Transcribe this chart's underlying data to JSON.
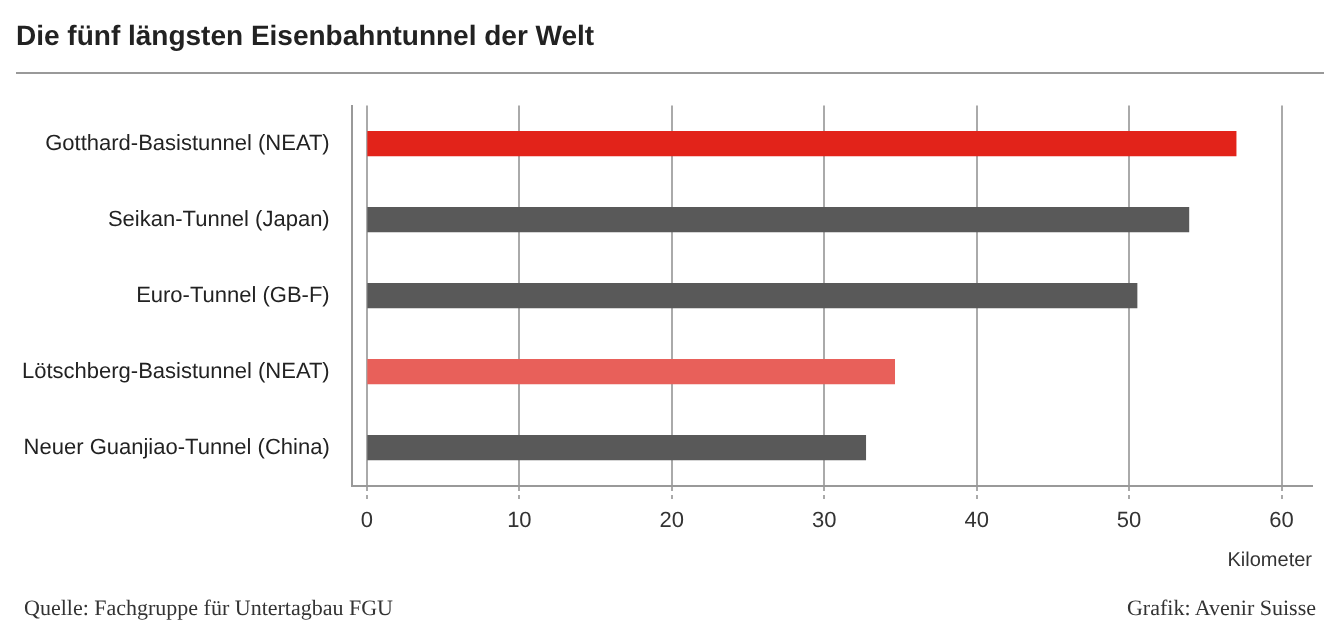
{
  "chart_data": {
    "type": "bar",
    "orientation": "horizontal",
    "title": "Die fünf längsten Eisenbahntunnel der Welt",
    "xlabel": "Kilometer",
    "categories": [
      "Gotthard-Basistunnel (NEAT)",
      "Seikan-Tunnel (Japan)",
      "Euro-Tunnel (GB-F)",
      "Lötschberg-Basistunnel (NEAT)",
      "Neuer Guanjiao-Tunnel (China)"
    ],
    "values": [
      57,
      53.9,
      50.5,
      34.6,
      32.7
    ],
    "colors": [
      "#e2231a",
      "#595959",
      "#595959",
      "#e8605a",
      "#595959"
    ],
    "xlim": [
      -1,
      62
    ],
    "xticks": [
      0,
      10,
      20,
      30,
      40,
      50,
      60
    ],
    "grid": "x",
    "annotations": [
      "Quelle: Fachgruppe für Untertagbau FGU",
      "Grafik: Avenir Suisse"
    ]
  }
}
